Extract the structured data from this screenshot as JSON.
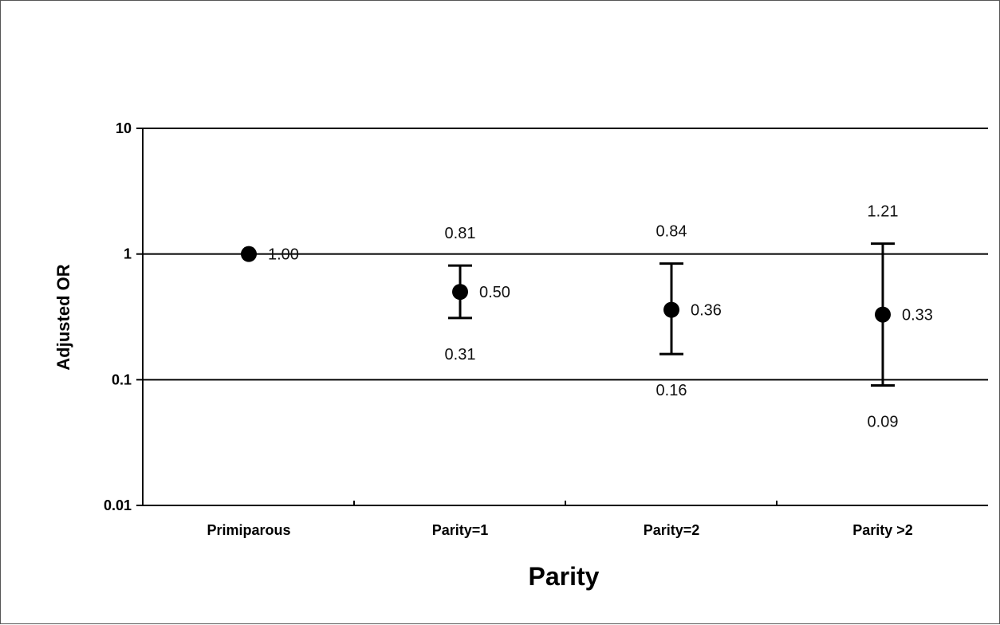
{
  "chart_data": {
    "type": "scatter",
    "xlabel": "Parity",
    "ylabel": "Adjusted OR",
    "yscale": "log",
    "ylim": [
      0.01,
      10
    ],
    "yticks": [
      10,
      1,
      0.1,
      0.01
    ],
    "ytick_labels": [
      "10",
      "1",
      "0.1",
      "0.01"
    ],
    "grid": "horizontal at 1 and 0.1",
    "categories": [
      "Primiparous",
      "Parity=1",
      "Parity=2",
      "Parity >2"
    ],
    "points": [
      {
        "category": "Primiparous",
        "or": 1.0,
        "or_label": "1.00"
      },
      {
        "category": "Parity=1",
        "or": 0.5,
        "or_label": "0.50",
        "lower": 0.31,
        "lower_label": "0.31",
        "upper": 0.81,
        "upper_label": "0.81"
      },
      {
        "category": "Parity=2",
        "or": 0.36,
        "or_label": "0.36",
        "lower": 0.16,
        "lower_label": "0.16",
        "upper": 0.84,
        "upper_label": "0.84"
      },
      {
        "category": "Parity >2",
        "or": 0.33,
        "or_label": "0.33",
        "lower": 0.09,
        "lower_label": "0.09",
        "upper": 1.21,
        "upper_label": "1.21"
      }
    ]
  }
}
